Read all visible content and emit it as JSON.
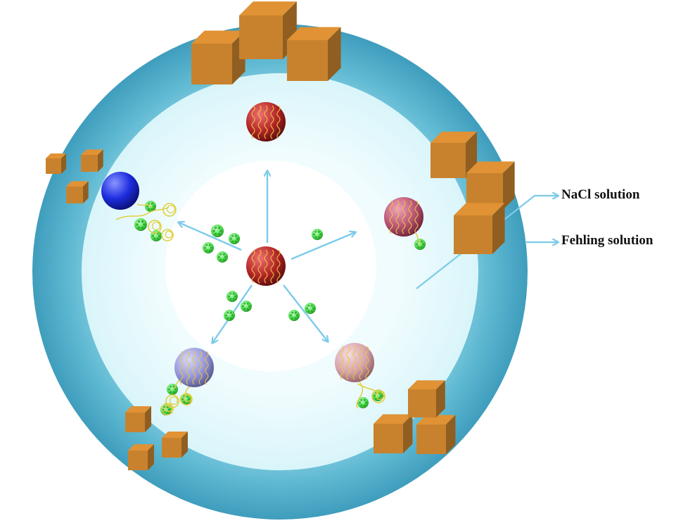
{
  "labels": {
    "nacl": "NaCl solution",
    "fehling": "Fehling solution"
  },
  "colors": {
    "outer_ring": "#4fb0cb",
    "inner_ring": "#e6f9fc",
    "core": "#ffffff",
    "arrow": "#7ccbea",
    "cube": "#c8822e",
    "green_particle": "#4ee04e",
    "tether": "#e0d040",
    "sphere_center": "#b22424",
    "sphere_top": "#b32424",
    "sphere_right": "#b85370",
    "sphere_bottom_right": "#d6a3ab",
    "sphere_bottom_left": "#9496da",
    "sphere_left": "#1e2de0"
  }
}
